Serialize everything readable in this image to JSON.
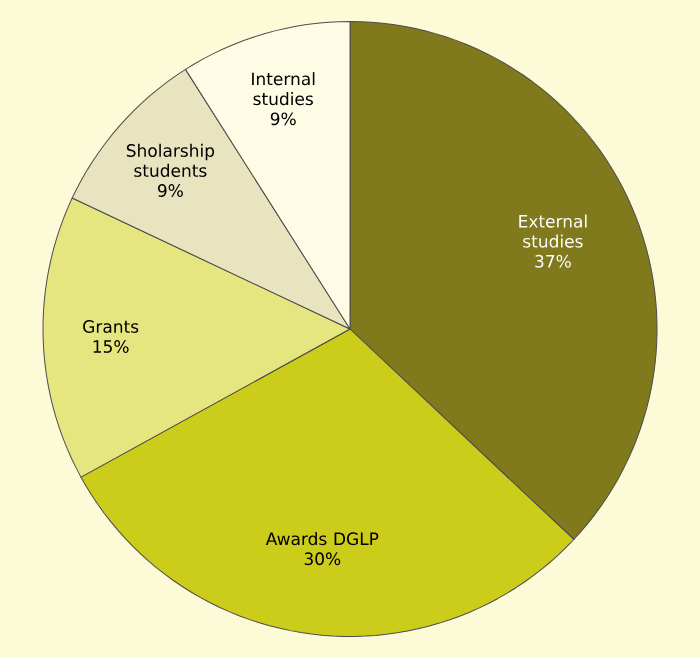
{
  "chart_data": {
    "type": "pie",
    "categories": [
      "External studies",
      "Awards DGLP",
      "Grants",
      "Sholarship students",
      "Internal studies"
    ],
    "values": [
      37,
      30,
      15,
      9,
      9
    ],
    "value_labels": [
      "37%",
      "30%",
      "15%",
      "9%",
      "9%"
    ],
    "colors": [
      "#807a1c",
      "#cccc1a",
      "#e6e680",
      "#e8e4c0",
      "#fffce6"
    ]
  }
}
